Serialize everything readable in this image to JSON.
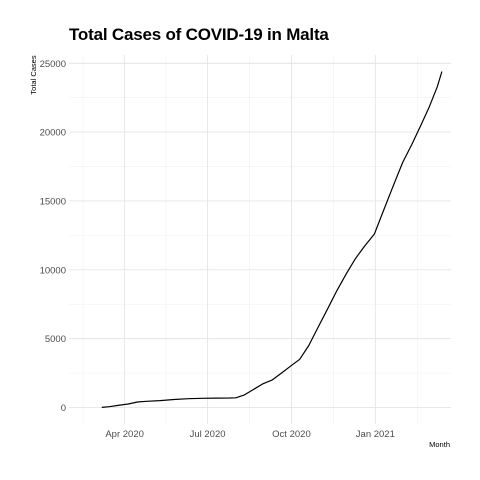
{
  "chart_data": {
    "type": "line",
    "title": "Total Cases of COVID-19 in Malta",
    "xlabel": "Month",
    "ylabel": "Total Cases",
    "x_tick_labels": [
      "Apr 2020",
      "Jul 2020",
      "Oct 2020",
      "Jan 2021"
    ],
    "y_tick_labels": [
      "0",
      "5000",
      "10000",
      "15000",
      "20000",
      "25000"
    ],
    "y_ticks": [
      0,
      5000,
      10000,
      15000,
      20000,
      25000
    ],
    "ylim": [
      -1200,
      25600
    ],
    "xlim": [
      "2020-01-31",
      "2021-03-25"
    ],
    "x_tick_dates": [
      "2020-04-01",
      "2020-07-01",
      "2020-10-01",
      "2021-01-01"
    ],
    "grid": true,
    "legend": "none",
    "line_color": "#000000",
    "series": [
      {
        "x": [
          "2020-03-07",
          "2020-03-15",
          "2020-03-25",
          "2020-04-05",
          "2020-04-15",
          "2020-04-25",
          "2020-05-10",
          "2020-05-25",
          "2020-06-10",
          "2020-06-25",
          "2020-07-10",
          "2020-07-25",
          "2020-08-01",
          "2020-08-10",
          "2020-08-20",
          "2020-08-30",
          "2020-09-10",
          "2020-09-20",
          "2020-09-30",
          "2020-10-10",
          "2020-10-20",
          "2020-10-30",
          "2020-11-10",
          "2020-11-20",
          "2020-11-30",
          "2020-12-10",
          "2020-12-20",
          "2020-12-31",
          "2021-01-10",
          "2021-01-20",
          "2021-01-31",
          "2021-02-10",
          "2021-02-20",
          "2021-03-01",
          "2021-03-10",
          "2021-03-15"
        ],
        "y": [
          3,
          60,
          150,
          250,
          400,
          450,
          500,
          580,
          640,
          670,
          680,
          690,
          700,
          900,
          1300,
          1700,
          2000,
          2500,
          3000,
          3500,
          4500,
          5800,
          7200,
          8500,
          9700,
          10800,
          11700,
          12600,
          14300,
          16000,
          17800,
          19100,
          20500,
          21800,
          23300,
          24400
        ]
      }
    ]
  }
}
